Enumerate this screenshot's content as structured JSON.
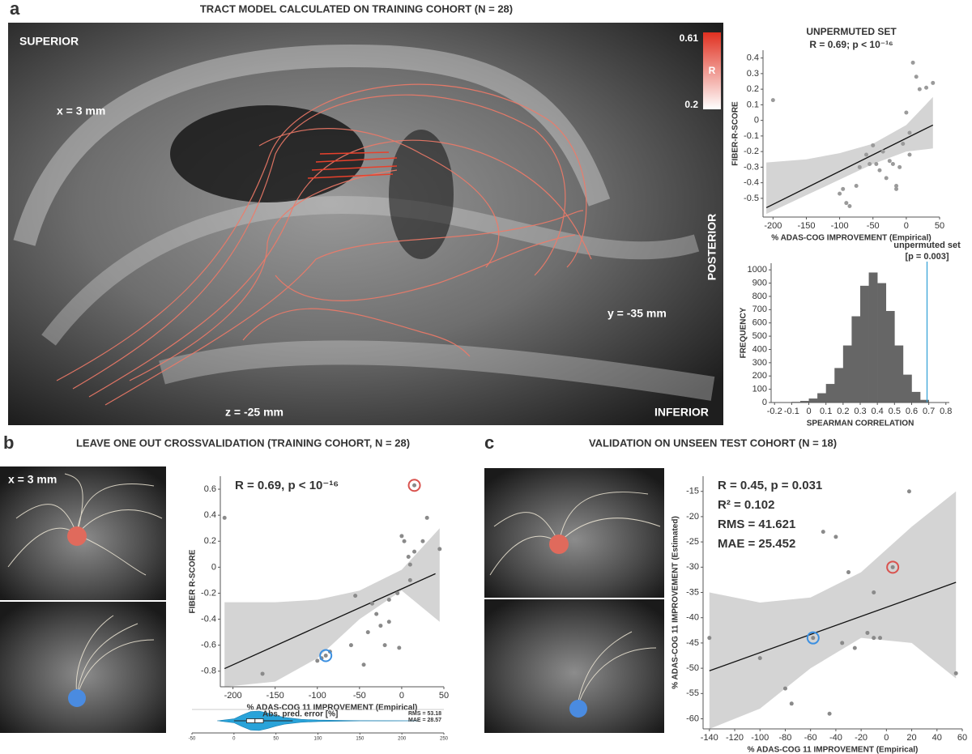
{
  "figure": {
    "panel_a": {
      "label": "a",
      "heading": "TRACT MODEL CALCULATED ON TRAINING COHORT (N = 28)",
      "brain_labels": [
        "SUPERIOR",
        "x = 3 mm",
        "y = -35 mm",
        "z = -25 mm",
        "INFERIOR",
        "POSTERIOR"
      ],
      "colorbar": {
        "max": 0.61,
        "min": 0.2,
        "label": "R"
      }
    },
    "panel_b": {
      "label": "b",
      "heading": "LEAVE ONE OUT CROSSVALIDATION  (TRAINING COHORT, N = 28)",
      "brain_label": "x = 3 mm"
    },
    "panel_c": {
      "label": "c",
      "heading": "VALIDATION ON UNSEEN TEST COHORT (N = 18)"
    }
  },
  "chart_data": [
    {
      "type": "scatter",
      "title": "UNPERMUTED SET",
      "subtitle": "R = 0.69; p < 10⁻¹⁶",
      "x_label": "% ADAS-COG IMPROVEMENT (Empirical)",
      "y_label": "FIBER-R-SCORE",
      "xlim": [
        -215,
        50
      ],
      "ylim": [
        -0.62,
        0.45
      ],
      "xticks": [
        -200,
        -150,
        -100,
        -50,
        0,
        50
      ],
      "yticks": [
        -0.5,
        -0.4,
        -0.3,
        -0.2,
        -0.1,
        0,
        0.1,
        0.2,
        0.3,
        0.4
      ],
      "x": [
        -200,
        -95,
        -90,
        -85,
        -75,
        -70,
        -60,
        -50,
        -45,
        -40,
        -35,
        -30,
        -25,
        -20,
        -15,
        -10,
        -5,
        0,
        5,
        5,
        10,
        15,
        20,
        30,
        40,
        -55,
        -100,
        -15
      ],
      "values": [
        0.13,
        -0.44,
        -0.53,
        -0.55,
        -0.42,
        -0.3,
        -0.22,
        -0.16,
        -0.28,
        -0.32,
        -0.2,
        -0.37,
        -0.26,
        -0.28,
        -0.42,
        -0.3,
        -0.15,
        0.05,
        -0.22,
        -0.08,
        0.37,
        0.28,
        0.2,
        0.21,
        0.24,
        -0.28,
        -0.47,
        -0.44
      ],
      "fit": {
        "x": [
          -210,
          40
        ],
        "y": [
          -0.56,
          -0.03
        ]
      },
      "band": {
        "x": [
          -210,
          -150,
          -100,
          -50,
          0,
          40
        ],
        "upper": [
          -0.27,
          -0.25,
          -0.21,
          -0.15,
          -0.03,
          0.15
        ],
        "lower": [
          -0.6,
          -0.48,
          -0.38,
          -0.28,
          -0.2,
          -0.18
        ]
      },
      "point_color": "#9a9a9a",
      "band_color": "#d4d4d4",
      "line_color": "#111111"
    },
    {
      "type": "histogram",
      "x_label": "SPEARMAN CORRELATION",
      "y_label": "FREQUENCY",
      "xlim": [
        -0.22,
        0.82
      ],
      "ylim": [
        0,
        1050
      ],
      "xticks": [
        -0.2,
        -0.1,
        0,
        0.1,
        0.2,
        0.3,
        0.4,
        0.5,
        0.6,
        0.7,
        0.8
      ],
      "yticks": [
        0,
        100,
        200,
        300,
        400,
        500,
        600,
        700,
        800,
        900,
        1000
      ],
      "bins": [
        -0.15,
        -0.1,
        -0.05,
        0,
        0.05,
        0.1,
        0.15,
        0.2,
        0.25,
        0.3,
        0.35,
        0.4,
        0.45,
        0.5,
        0.55,
        0.6,
        0.65,
        0.7
      ],
      "counts": [
        2,
        5,
        12,
        30,
        70,
        140,
        260,
        430,
        650,
        880,
        980,
        900,
        690,
        430,
        210,
        80,
        20
      ],
      "color": "#666666",
      "marker": {
        "value": 0.69,
        "label": "unpermuted set",
        "note": "[p = 0.003]",
        "color": "#2f9fd6"
      }
    },
    {
      "type": "scatter",
      "annotations": [
        "R = 0.69, p < 10⁻¹⁶"
      ],
      "x_label": "% ADAS-COG 11 IMPROVEMENT (Empirical)",
      "y_label": "FIBER R-SCORE",
      "xlim": [
        -215,
        50
      ],
      "ylim": [
        -0.92,
        0.7
      ],
      "xticks": [
        -200,
        -150,
        -100,
        -50,
        0,
        50
      ],
      "yticks": [
        -0.8,
        -0.6,
        -0.4,
        -0.2,
        0,
        0.2,
        0.4,
        0.6
      ],
      "x": [
        -210,
        -165,
        -100,
        -95,
        -85,
        -60,
        -55,
        -45,
        -40,
        -35,
        -30,
        -25,
        -20,
        -15,
        -15,
        -5,
        -3,
        0,
        3,
        8,
        10,
        10,
        15,
        25,
        30,
        45
      ],
      "values": [
        0.38,
        -0.82,
        -0.72,
        -0.7,
        -0.65,
        -0.6,
        -0.22,
        -0.75,
        -0.5,
        -0.28,
        -0.36,
        -0.45,
        -0.6,
        -0.42,
        -0.25,
        -0.2,
        -0.62,
        0.24,
        0.2,
        0.08,
        -0.1,
        0.02,
        0.12,
        0.2,
        0.38,
        0.14
      ],
      "highlighted": [
        {
          "x": 15,
          "value": 0.63,
          "color": "#d9534f"
        },
        {
          "x": -90,
          "value": -0.68,
          "color": "#3b8fe0"
        }
      ],
      "fit": {
        "x": [
          -210,
          40
        ],
        "y": [
          -0.78,
          -0.05
        ]
      },
      "band": {
        "x": [
          -210,
          -150,
          -100,
          -50,
          0,
          45
        ],
        "upper": [
          -0.27,
          -0.27,
          -0.25,
          -0.18,
          -0.02,
          0.3
        ],
        "lower": [
          -0.92,
          -0.88,
          -0.7,
          -0.4,
          -0.18,
          -0.42
        ]
      },
      "point_color": "#8a8a8a",
      "band_color": "#d4d4d4",
      "line_color": "#111111"
    },
    {
      "type": "density",
      "title": "Abs. pred. error [%]",
      "annotations": [
        "RMS = 53.18",
        "MAE = 28.57"
      ],
      "xlim": [
        -50,
        250
      ],
      "xticks": [
        -50,
        0,
        50,
        100,
        150,
        200,
        250
      ],
      "x": [
        -20,
        0,
        10,
        20,
        30,
        40,
        50,
        60,
        80,
        100,
        120,
        150,
        220
      ],
      "values": [
        0,
        0.2,
        0.6,
        0.95,
        1,
        0.8,
        0.55,
        0.35,
        0.15,
        0.08,
        0.05,
        0.02,
        0
      ],
      "box": {
        "whislo": 0,
        "q1": 15,
        "med": 25,
        "q3": 35,
        "whishi": 70
      },
      "color": "#29a3d9"
    },
    {
      "type": "scatter",
      "annotations": [
        "R = 0.45, p = 0.031",
        "R² = 0.102",
        "RMS = 41.621",
        "MAE = 25.452"
      ],
      "x_label": "% ADAS-COG 11 IMPROVEMENT (Empirical)",
      "y_label": "% ADAS-COG 11 IMPROVEMENT (Estimated)",
      "xlim": [
        -145,
        60
      ],
      "ylim": [
        -62,
        -12
      ],
      "xticks": [
        -140,
        -120,
        -100,
        -80,
        -60,
        -40,
        -20,
        0,
        20,
        40,
        60
      ],
      "yticks": [
        -15,
        -20,
        -25,
        -30,
        -35,
        -40,
        -45,
        -50,
        -55,
        -60
      ],
      "x": [
        -140,
        -100,
        -80,
        -75,
        -50,
        -40,
        -30,
        -35,
        -25,
        -15,
        -10,
        -5,
        -10,
        18,
        -45,
        55
      ],
      "values": [
        -44,
        -48,
        -54,
        -57,
        -23,
        -24,
        -31,
        -45,
        -46,
        -43,
        -44,
        -44,
        -35,
        -15,
        -59,
        -51
      ],
      "highlighted": [
        {
          "x": 5,
          "value": -30,
          "color": "#d9534f"
        },
        {
          "x": -58,
          "value": -44,
          "color": "#3b8fe0"
        }
      ],
      "fit": {
        "x": [
          -140,
          55
        ],
        "y": [
          -50.5,
          -33
        ]
      },
      "band": {
        "x": [
          -140,
          -100,
          -60,
          -20,
          20,
          55
        ],
        "upper": [
          -35,
          -37,
          -36,
          -31,
          -22,
          -15
        ],
        "lower": [
          -62,
          -58,
          -50,
          -44,
          -45,
          -52
        ]
      },
      "point_color": "#8a8a8a",
      "band_color": "#d4d4d4",
      "line_color": "#111111"
    }
  ]
}
